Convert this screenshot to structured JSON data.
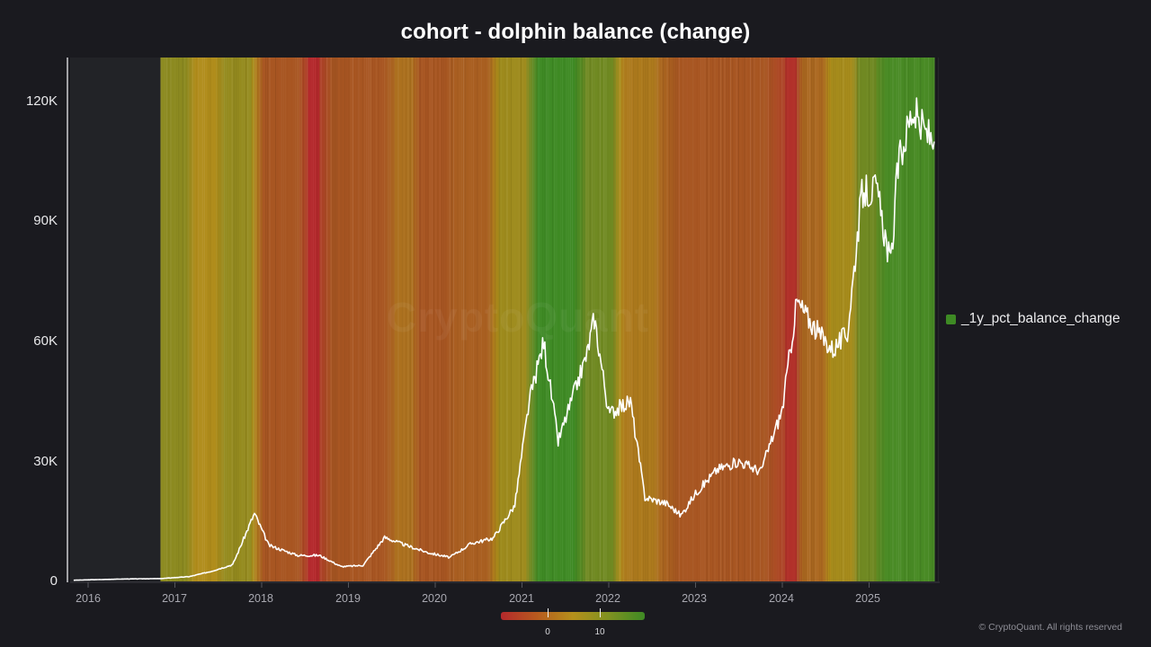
{
  "title": "cohort - dolphin balance (change)",
  "watermark": "CryptoQuant",
  "footer": "© CryptoQuant. All rights reserved",
  "legend": {
    "label": "_1y_pct_balance_change",
    "color": "#3e8a24"
  },
  "colorbar": {
    "tick_labels": [
      "0",
      "10"
    ],
    "colors": [
      "#b4292c",
      "#b75a1e",
      "#b5901b",
      "#7f9221",
      "#3e8a24"
    ]
  },
  "axes": {
    "y_ticks": [
      "0",
      "30K",
      "60K",
      "90K",
      "120K"
    ],
    "x_ticks": [
      "2016",
      "2017",
      "2018",
      "2019",
      "2020",
      "2021",
      "2022",
      "2023",
      "2024",
      "2025"
    ]
  },
  "chart_data": {
    "type": "heatmap",
    "title": "cohort - dolphin balance (change)",
    "xlabel": "",
    "ylabel": "",
    "ylim": [
      0,
      130000
    ],
    "xlim": [
      "2015-11",
      "2025-10"
    ],
    "grid": false,
    "legend_position": "right",
    "y_ticks": [
      0,
      30000,
      60000,
      90000,
      120000
    ],
    "x_ticks": [
      "2016",
      "2017",
      "2018",
      "2019",
      "2020",
      "2021",
      "2022",
      "2023",
      "2024",
      "2025"
    ],
    "price_series": {
      "name": "price (line, white)",
      "x": [
        "2015-11",
        "2016-06",
        "2016-11",
        "2017-03",
        "2017-06",
        "2017-09",
        "2017-12",
        "2018-02",
        "2018-06",
        "2018-09",
        "2018-12",
        "2019-03",
        "2019-06",
        "2019-09",
        "2019-12",
        "2020-03",
        "2020-06",
        "2020-09",
        "2020-12",
        "2021-02",
        "2021-04",
        "2021-06",
        "2021-08",
        "2021-10",
        "2021-11",
        "2022-01",
        "2022-04",
        "2022-06",
        "2022-09",
        "2022-11",
        "2023-01",
        "2023-04",
        "2023-07",
        "2023-10",
        "2024-01",
        "2024-03",
        "2024-06",
        "2024-08",
        "2024-10",
        "2024-12",
        "2025-02",
        "2025-04",
        "2025-05",
        "2025-07",
        "2025-08",
        "2025-10"
      ],
      "values": [
        300,
        600,
        700,
        1200,
        2500,
        4200,
        17000,
        9000,
        6500,
        6500,
        3700,
        4000,
        11000,
        9000,
        7200,
        6000,
        9500,
        10800,
        19000,
        45000,
        60000,
        35000,
        46000,
        57000,
        66000,
        42000,
        45000,
        21000,
        19500,
        16500,
        22000,
        28000,
        30000,
        27500,
        43000,
        70000,
        62000,
        58000,
        62000,
        97000,
        98000,
        79000,
        104000,
        118000,
        114000,
        110000
      ]
    },
    "heatmap_series": {
      "name": "_1y_pct_balance_change",
      "color_scale": {
        "min_color": "#b4292c",
        "zero": "#b5901b",
        "max_color": "#3e8a24",
        "ticks": [
          0,
          10
        ]
      },
      "segments": [
        {
          "from": "2016-11",
          "to": "2017-03",
          "approx_value": 4
        },
        {
          "from": "2017-03",
          "to": "2017-07",
          "approx_value": 0
        },
        {
          "from": "2017-07",
          "to": "2017-12",
          "approx_value": 3
        },
        {
          "from": "2017-12",
          "to": "2018-07",
          "approx_value": -6
        },
        {
          "from": "2018-07",
          "to": "2018-09",
          "approx_value": -12
        },
        {
          "from": "2018-09",
          "to": "2019-07",
          "approx_value": -6
        },
        {
          "from": "2019-07",
          "to": "2019-10",
          "approx_value": -3
        },
        {
          "from": "2019-10",
          "to": "2020-03",
          "approx_value": -6
        },
        {
          "from": "2020-03",
          "to": "2020-09",
          "approx_value": -5
        },
        {
          "from": "2020-09",
          "to": "2021-02",
          "approx_value": 2
        },
        {
          "from": "2021-02",
          "to": "2021-09",
          "approx_value": 12
        },
        {
          "from": "2021-09",
          "to": "2022-02",
          "approx_value": 7
        },
        {
          "from": "2022-02",
          "to": "2022-08",
          "approx_value": -2
        },
        {
          "from": "2022-08",
          "to": "2024-01",
          "approx_value": -6
        },
        {
          "from": "2024-01",
          "to": "2024-03",
          "approx_value": -11
        },
        {
          "from": "2024-03",
          "to": "2024-07",
          "approx_value": -4
        },
        {
          "from": "2024-07",
          "to": "2024-11",
          "approx_value": 1
        },
        {
          "from": "2024-11",
          "to": "2025-02",
          "approx_value": 7
        },
        {
          "from": "2025-02",
          "to": "2025-10",
          "approx_value": 11
        }
      ]
    }
  }
}
